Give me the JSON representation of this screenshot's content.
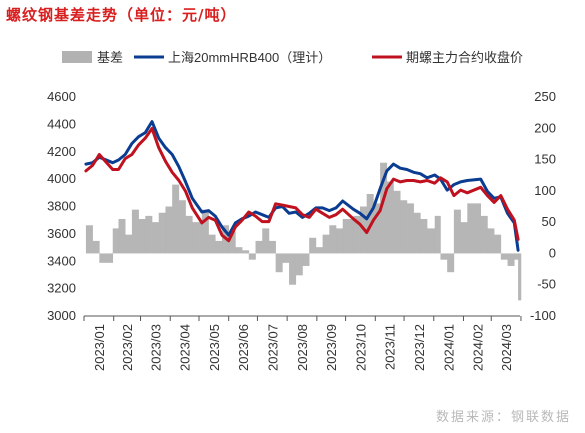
{
  "title": "螺纹钢基差走势（单位：元/吨）",
  "source": "数据来源：钢联数据",
  "chart_data": {
    "type": "line",
    "legend_position": "top",
    "grid": false,
    "x_tick_labels": [
      "2023/01",
      "2023/02",
      "2023/03",
      "2023/04",
      "2023/05",
      "2023/06",
      "2023/07",
      "2023/08",
      "2023/09",
      "2023/10",
      "2023/11",
      "2023/12",
      "2024/01",
      "2024/02",
      "2024/03"
    ],
    "x_range": [
      "2023-01-01",
      "2024-03-31"
    ],
    "y_left": {
      "ticks": [
        3000,
        3200,
        3400,
        3600,
        3800,
        4000,
        4200,
        4400,
        4600
      ],
      "range": [
        3000,
        4600
      ]
    },
    "y_right": {
      "ticks": [
        -100,
        -50,
        0,
        50,
        100,
        150,
        200,
        250
      ],
      "range": [
        -100,
        250
      ]
    },
    "colors": {
      "basis": "#b2b2b2",
      "spot": "#0a3d91",
      "futures": "#c0111f"
    },
    "series": [
      {
        "name": "基差",
        "type": "area",
        "axis": "right",
        "color": "#b2b2b2",
        "x": [
          "2023-01-03",
          "2023-01-10",
          "2023-01-17",
          "2023-01-31",
          "2023-02-06",
          "2023-02-13",
          "2023-02-20",
          "2023-02-27",
          "2023-03-06",
          "2023-03-13",
          "2023-03-20",
          "2023-03-27",
          "2023-04-03",
          "2023-04-10",
          "2023-04-17",
          "2023-04-24",
          "2023-05-04",
          "2023-05-11",
          "2023-05-18",
          "2023-05-25",
          "2023-06-01",
          "2023-06-08",
          "2023-06-15",
          "2023-06-22",
          "2023-06-29",
          "2023-07-06",
          "2023-07-13",
          "2023-07-20",
          "2023-07-27",
          "2023-08-03",
          "2023-08-10",
          "2023-08-17",
          "2023-08-24",
          "2023-08-31",
          "2023-09-07",
          "2023-09-14",
          "2023-09-21",
          "2023-09-28",
          "2023-10-09",
          "2023-10-16",
          "2023-10-23",
          "2023-10-30",
          "2023-11-06",
          "2023-11-13",
          "2023-11-20",
          "2023-11-27",
          "2023-12-04",
          "2023-12-11",
          "2023-12-18",
          "2023-12-25",
          "2024-01-02",
          "2024-01-08",
          "2024-01-15",
          "2024-01-22",
          "2024-01-29",
          "2024-02-05",
          "2024-02-19",
          "2024-02-26",
          "2024-03-04",
          "2024-03-11",
          "2024-03-18",
          "2024-03-25",
          "2024-03-29"
        ],
        "values": [
          45,
          20,
          -15,
          40,
          55,
          30,
          70,
          55,
          60,
          50,
          65,
          75,
          110,
          85,
          60,
          50,
          70,
          30,
          20,
          45,
          35,
          10,
          5,
          -10,
          20,
          40,
          20,
          -30,
          -15,
          -50,
          -35,
          -20,
          25,
          10,
          30,
          45,
          40,
          55,
          60,
          75,
          95,
          80,
          145,
          115,
          100,
          85,
          80,
          65,
          55,
          40,
          60,
          -10,
          -30,
          70,
          50,
          80,
          60,
          40,
          30,
          -10,
          -20,
          -10,
          -75
        ]
      },
      {
        "name": "上海20mmHRB400（理计）",
        "type": "line",
        "axis": "left",
        "color": "#0a3d91",
        "x": [
          "2023-01-03",
          "2023-01-10",
          "2023-01-17",
          "2023-01-31",
          "2023-02-06",
          "2023-02-13",
          "2023-02-20",
          "2023-02-27",
          "2023-03-06",
          "2023-03-13",
          "2023-03-20",
          "2023-03-27",
          "2023-04-03",
          "2023-04-10",
          "2023-04-17",
          "2023-04-24",
          "2023-05-04",
          "2023-05-11",
          "2023-05-18",
          "2023-05-25",
          "2023-06-01",
          "2023-06-08",
          "2023-06-15",
          "2023-06-22",
          "2023-06-29",
          "2023-07-06",
          "2023-07-13",
          "2023-07-20",
          "2023-07-27",
          "2023-08-03",
          "2023-08-10",
          "2023-08-17",
          "2023-08-24",
          "2023-08-31",
          "2023-09-07",
          "2023-09-14",
          "2023-09-21",
          "2023-09-28",
          "2023-10-09",
          "2023-10-16",
          "2023-10-23",
          "2023-10-30",
          "2023-11-06",
          "2023-11-13",
          "2023-11-20",
          "2023-11-27",
          "2023-12-04",
          "2023-12-11",
          "2023-12-18",
          "2023-12-25",
          "2024-01-02",
          "2024-01-08",
          "2024-01-15",
          "2024-01-22",
          "2024-01-29",
          "2024-02-05",
          "2024-02-19",
          "2024-02-26",
          "2024-03-04",
          "2024-03-11",
          "2024-03-18",
          "2024-03-25",
          "2024-03-29"
        ],
        "values": [
          4110,
          4120,
          4160,
          4120,
          4140,
          4180,
          4260,
          4310,
          4340,
          4420,
          4300,
          4230,
          4180,
          4090,
          3980,
          3860,
          3760,
          3770,
          3730,
          3650,
          3590,
          3680,
          3710,
          3730,
          3760,
          3740,
          3720,
          3790,
          3800,
          3750,
          3760,
          3720,
          3750,
          3790,
          3790,
          3770,
          3790,
          3840,
          3780,
          3750,
          3710,
          3790,
          3930,
          4060,
          4110,
          4080,
          4070,
          4050,
          4040,
          4010,
          4030,
          4000,
          3920,
          3960,
          3980,
          3990,
          4000,
          3910,
          3860,
          3870,
          3750,
          3680,
          3480
        ]
      },
      {
        "name": "期螺主力合约收盘价",
        "type": "line",
        "axis": "left",
        "color": "#c0111f",
        "x": [
          "2023-01-03",
          "2023-01-10",
          "2023-01-17",
          "2023-01-31",
          "2023-02-06",
          "2023-02-13",
          "2023-02-20",
          "2023-02-27",
          "2023-03-06",
          "2023-03-13",
          "2023-03-20",
          "2023-03-27",
          "2023-04-03",
          "2023-04-10",
          "2023-04-17",
          "2023-04-24",
          "2023-05-04",
          "2023-05-11",
          "2023-05-18",
          "2023-05-25",
          "2023-06-01",
          "2023-06-08",
          "2023-06-15",
          "2023-06-22",
          "2023-06-29",
          "2023-07-06",
          "2023-07-13",
          "2023-07-20",
          "2023-07-27",
          "2023-08-03",
          "2023-08-10",
          "2023-08-17",
          "2023-08-24",
          "2023-08-31",
          "2023-09-07",
          "2023-09-14",
          "2023-09-21",
          "2023-09-28",
          "2023-10-09",
          "2023-10-16",
          "2023-10-23",
          "2023-10-30",
          "2023-11-06",
          "2023-11-13",
          "2023-11-20",
          "2023-11-27",
          "2023-12-04",
          "2023-12-11",
          "2023-12-18",
          "2023-12-25",
          "2024-01-02",
          "2024-01-08",
          "2024-01-15",
          "2024-01-22",
          "2024-01-29",
          "2024-02-05",
          "2024-02-19",
          "2024-02-26",
          "2024-03-04",
          "2024-03-11",
          "2024-03-18",
          "2024-03-25",
          "2024-03-29"
        ],
        "values": [
          4060,
          4100,
          4180,
          4070,
          4070,
          4150,
          4180,
          4250,
          4300,
          4370,
          4230,
          4130,
          4050,
          3990,
          3910,
          3790,
          3680,
          3720,
          3700,
          3590,
          3550,
          3650,
          3700,
          3760,
          3730,
          3690,
          3690,
          3820,
          3810,
          3800,
          3790,
          3740,
          3720,
          3780,
          3750,
          3720,
          3740,
          3780,
          3710,
          3670,
          3610,
          3700,
          3770,
          3930,
          4000,
          3980,
          3990,
          3990,
          3980,
          3990,
          3970,
          4010,
          3980,
          3880,
          3920,
          3900,
          3940,
          3880,
          3830,
          3880,
          3780,
          3700,
          3560
        ]
      }
    ]
  }
}
